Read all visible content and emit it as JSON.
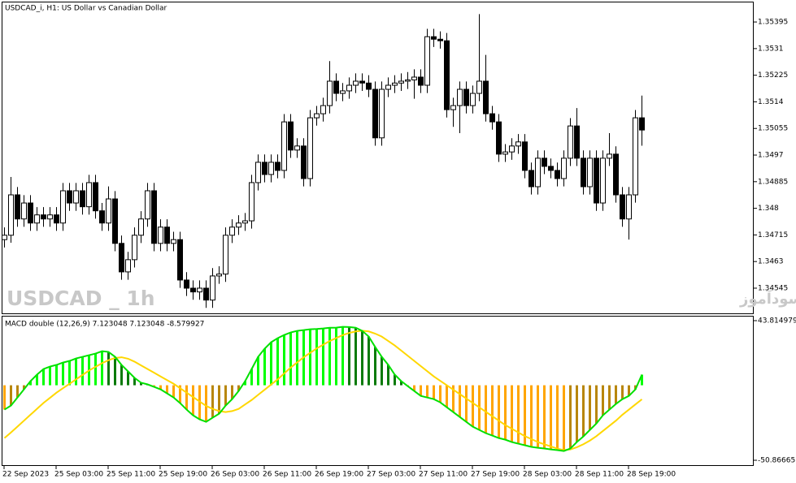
{
  "chart_data": [
    {
      "type": "candlestick",
      "title": "USDCAD_i, H1:  US Dollar vs Canadian Dollar",
      "watermark": "USDCAD _ 1h",
      "caption": "انتشار در سایت سودآموز",
      "up_color": "#ffffff",
      "down_color": "#000000",
      "ylim": [
        1.34462,
        1.3546
      ],
      "yticks": [
        1.35395,
        1.3531,
        1.35225,
        1.3514,
        1.35055,
        1.3497,
        1.34885,
        1.348,
        1.34715,
        1.3463,
        1.34545
      ],
      "categories": [
        "22 Sep 2023",
        null,
        null,
        null,
        null,
        null,
        null,
        null,
        "25 Sep 03:00",
        null,
        null,
        null,
        null,
        null,
        null,
        null,
        "25 Sep 11:00",
        null,
        null,
        null,
        null,
        null,
        null,
        null,
        "25 Sep 19:00",
        null,
        null,
        null,
        null,
        null,
        null,
        null,
        "26 Sep 03:00",
        null,
        null,
        null,
        null,
        null,
        null,
        null,
        "26 Sep 11:00",
        null,
        null,
        null,
        null,
        null,
        null,
        null,
        "26 Sep 19:00",
        null,
        null,
        null,
        null,
        null,
        null,
        null,
        "27 Sep 03:00",
        null,
        null,
        null,
        null,
        null,
        null,
        null,
        "27 Sep 11:00",
        null,
        null,
        null,
        null,
        null,
        null,
        null,
        "27 Sep 19:00",
        null,
        null,
        null,
        null,
        null,
        null,
        null,
        "28 Sep 03:00",
        null,
        null,
        null,
        null,
        null,
        null,
        null,
        "28 Sep 11:00",
        null,
        null,
        null,
        null,
        null,
        null,
        null,
        "28 Sep 19:00",
        null,
        null
      ],
      "open": [
        1.347,
        1.34714,
        1.34843,
        1.34766,
        1.34817,
        1.34753,
        1.34779,
        1.34766,
        1.34779,
        1.34753,
        1.34856,
        1.34817,
        1.34856,
        1.34805,
        1.34882,
        1.34792,
        1.34753,
        1.3483,
        1.34688,
        1.34597,
        1.34636,
        1.34714,
        1.34766,
        1.34856,
        1.34688,
        1.3474,
        1.34688,
        1.347,
        1.34571,
        1.34545,
        1.34533,
        1.34545,
        1.34507,
        1.34584,
        1.3459,
        1.34714,
        1.3474,
        1.34753,
        1.3476,
        1.34882,
        1.34947,
        1.34908,
        1.34947,
        1.34921,
        1.35076,
        1.34986,
        1.34999,
        1.34895,
        1.35089,
        1.35102,
        1.35128,
        1.35206,
        1.35167,
        1.35175,
        1.35193,
        1.35206,
        1.352,
        1.3518,
        1.35025,
        1.3518,
        1.35193,
        1.352,
        1.35206,
        1.3521,
        1.35219,
        1.35193,
        1.35348,
        1.3534,
        1.35335,
        1.35115,
        1.35128,
        1.3518,
        1.35128,
        1.35167,
        1.35206,
        1.35102,
        1.35076,
        1.34973,
        1.3498,
        1.34999,
        1.35012,
        1.34921,
        1.34869,
        1.3496,
        1.34934,
        1.34921,
        1.34895,
        1.3496,
        1.35063,
        1.3496,
        1.34869,
        1.3496,
        1.34817,
        1.3496,
        1.34973,
        1.34843,
        1.34766,
        1.34843,
        1.35089
      ],
      "high": [
        1.34739,
        1.349,
        1.34868,
        1.34842,
        1.34842,
        1.34804,
        1.34804,
        1.34804,
        1.34804,
        1.34881,
        1.34881,
        1.34881,
        1.34881,
        1.34907,
        1.34907,
        1.34817,
        1.3487,
        1.34855,
        1.34713,
        1.34661,
        1.34739,
        1.34791,
        1.34881,
        1.34881,
        1.34765,
        1.34765,
        1.34725,
        1.34725,
        1.34596,
        1.3457,
        1.3457,
        1.3457,
        1.34609,
        1.34615,
        1.34739,
        1.34765,
        1.34778,
        1.34785,
        1.34907,
        1.34972,
        1.34972,
        1.34972,
        1.34972,
        1.35101,
        1.35101,
        1.35024,
        1.35024,
        1.35114,
        1.35127,
        1.35153,
        1.3527,
        1.35231,
        1.352,
        1.35218,
        1.35231,
        1.35231,
        1.35225,
        1.35205,
        1.35205,
        1.35218,
        1.35225,
        1.35231,
        1.35235,
        1.35244,
        1.35244,
        1.35373,
        1.35373,
        1.35365,
        1.3536,
        1.35153,
        1.35205,
        1.35205,
        1.35192,
        1.3542,
        1.3529,
        1.35127,
        1.35101,
        1.35005,
        1.35024,
        1.35037,
        1.35037,
        1.34946,
        1.34985,
        1.34985,
        1.34959,
        1.34946,
        1.34985,
        1.35088,
        1.3512,
        1.34985,
        1.34985,
        1.34985,
        1.34985,
        1.3504,
        1.34998,
        1.34868,
        1.34868,
        1.35114,
        1.3516
      ],
      "low": [
        1.34675,
        1.3469,
        1.34741,
        1.34741,
        1.34728,
        1.34728,
        1.34741,
        1.34741,
        1.34728,
        1.34728,
        1.34792,
        1.34792,
        1.3478,
        1.3478,
        1.34767,
        1.34728,
        1.34728,
        1.34663,
        1.34572,
        1.34572,
        1.34611,
        1.34689,
        1.34741,
        1.34663,
        1.34663,
        1.34663,
        1.34663,
        1.34546,
        1.3452,
        1.34508,
        1.34508,
        1.34482,
        1.34482,
        1.34559,
        1.34565,
        1.34689,
        1.34715,
        1.34728,
        1.34735,
        1.34857,
        1.34883,
        1.34883,
        1.34896,
        1.34896,
        1.34961,
        1.34961,
        1.3487,
        1.3487,
        1.35064,
        1.35077,
        1.35103,
        1.35142,
        1.35142,
        1.3515,
        1.35168,
        1.35175,
        1.35155,
        1.35,
        1.35,
        1.35155,
        1.35168,
        1.35175,
        1.35181,
        1.3515,
        1.35168,
        1.35168,
        1.35315,
        1.3531,
        1.3509,
        1.3506,
        1.3504,
        1.35103,
        1.35103,
        1.35142,
        1.35077,
        1.35051,
        1.34948,
        1.34948,
        1.34955,
        1.34974,
        1.34896,
        1.34844,
        1.34844,
        1.34909,
        1.34896,
        1.3487,
        1.3487,
        1.34935,
        1.34935,
        1.34844,
        1.34844,
        1.34792,
        1.34792,
        1.34935,
        1.34818,
        1.34741,
        1.347,
        1.34818,
        1.35
      ],
      "close": [
        1.34714,
        1.34843,
        1.34766,
        1.34817,
        1.34753,
        1.34779,
        1.34766,
        1.34779,
        1.34753,
        1.34856,
        1.34817,
        1.34856,
        1.34805,
        1.34882,
        1.34792,
        1.34753,
        1.3483,
        1.34688,
        1.34597,
        1.34636,
        1.34714,
        1.34766,
        1.34856,
        1.34688,
        1.3474,
        1.34688,
        1.347,
        1.34571,
        1.34545,
        1.34533,
        1.34545,
        1.34507,
        1.34584,
        1.3459,
        1.34714,
        1.3474,
        1.34753,
        1.3476,
        1.34882,
        1.34947,
        1.34908,
        1.34947,
        1.34921,
        1.35076,
        1.34986,
        1.34999,
        1.34895,
        1.35089,
        1.35102,
        1.35128,
        1.35206,
        1.35167,
        1.35175,
        1.35193,
        1.35206,
        1.352,
        1.3518,
        1.35025,
        1.3518,
        1.35193,
        1.352,
        1.35206,
        1.3521,
        1.35219,
        1.35193,
        1.35348,
        1.3534,
        1.35335,
        1.35115,
        1.35128,
        1.3518,
        1.35128,
        1.35167,
        1.35206,
        1.35102,
        1.35076,
        1.34973,
        1.3498,
        1.34999,
        1.35012,
        1.34921,
        1.34869,
        1.3496,
        1.34934,
        1.34921,
        1.34895,
        1.3496,
        1.35063,
        1.3496,
        1.34869,
        1.3496,
        1.34817,
        1.3496,
        1.34973,
        1.34843,
        1.34766,
        1.34843,
        1.35089,
        1.3505
      ]
    },
    {
      "type": "macd",
      "title": "MACD double (12,26,9) 7.123048 7.123048 -8.579927",
      "ylim": [
        -50.866657,
        43.814979
      ],
      "yticks": [
        43.814979,
        -50.866657
      ],
      "line_color": "#00e000",
      "signal_color": "#ffd700",
      "up_rising_color": "#00ff00",
      "up_falling_color": "#0a7a0a",
      "down_falling_color": "#ffa500",
      "down_rising_color": "#b8860b",
      "macd": [
        -16.5,
        -13.8,
        -8.3,
        -2.8,
        2.8,
        7.2,
        11,
        12.7,
        13.8,
        15.4,
        16.5,
        18.2,
        19.3,
        20.4,
        21.5,
        23.1,
        22.6,
        19.3,
        13.8,
        9.4,
        5,
        1.7,
        0.6,
        -1.1,
        -2.8,
        -5.5,
        -8.3,
        -12.1,
        -16.5,
        -20.4,
        -23.1,
        -24.8,
        -22,
        -19.3,
        -13.8,
        -9.4,
        -3.9,
        2.8,
        11,
        19.3,
        24.8,
        29.2,
        31.9,
        34.1,
        35.8,
        36.9,
        37.4,
        38,
        38.2,
        38.5,
        39,
        39.1,
        39.6,
        39.5,
        39,
        36.9,
        33,
        25.9,
        19.3,
        13.8,
        7.2,
        2.8,
        -0.6,
        -3.9,
        -7.2,
        -8.3,
        -9.4,
        -11.6,
        -14.9,
        -18.2,
        -21.5,
        -24.8,
        -28.1,
        -30.3,
        -32.5,
        -34.1,
        -35.8,
        -36.9,
        -38.5,
        -39.6,
        -40.7,
        -41.8,
        -42.4,
        -42.9,
        -43.5,
        -44,
        -44.6,
        -42.9,
        -38.5,
        -34.7,
        -30.3,
        -25.9,
        -20.4,
        -16.5,
        -12.7,
        -9.4,
        -7.2,
        -2.8,
        7.2
      ],
      "signal": [
        -35.8,
        -32,
        -28,
        -24,
        -20,
        -16,
        -12,
        -8.5,
        -5,
        -2,
        1,
        4,
        7,
        10,
        12.5,
        15,
        17,
        18.5,
        19,
        18,
        16,
        13.5,
        11,
        8.5,
        6,
        3.5,
        1,
        -2,
        -5,
        -8,
        -11,
        -14,
        -16,
        -17.5,
        -18.2,
        -17.5,
        -16,
        -13,
        -10,
        -6.5,
        -3,
        0.5,
        4,
        8,
        12,
        15.5,
        19,
        22,
        25,
        27.5,
        30,
        32,
        34,
        35.5,
        36.5,
        37,
        36.5,
        35,
        33,
        30,
        27,
        23.5,
        20,
        16.5,
        13,
        9.5,
        6,
        3,
        0,
        -3,
        -6,
        -9,
        -12,
        -15,
        -18,
        -21,
        -24,
        -27,
        -29.5,
        -32,
        -34.5,
        -36.5,
        -38.5,
        -40,
        -41.5,
        -43,
        -44,
        -43.5,
        -42,
        -40,
        -37.5,
        -34.5,
        -31,
        -27.5,
        -24,
        -20,
        -16.5,
        -13,
        -9.5
      ]
    }
  ]
}
